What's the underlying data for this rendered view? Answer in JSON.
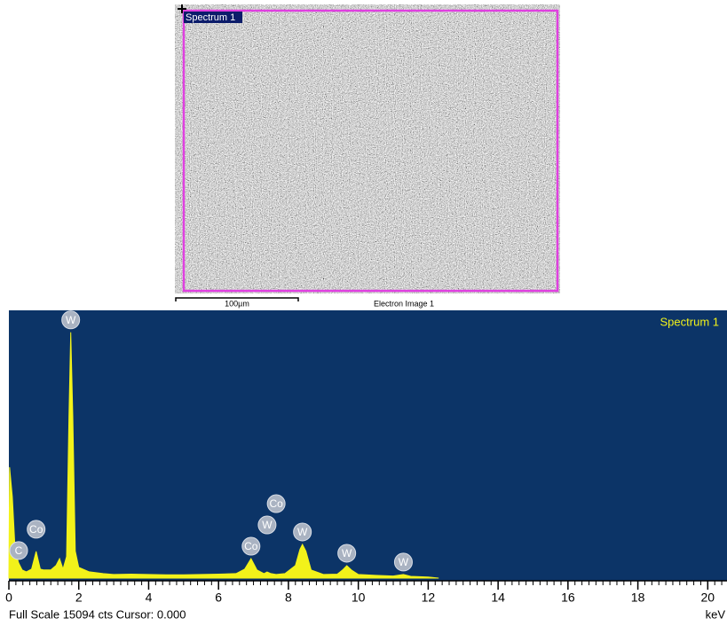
{
  "electron_image": {
    "region_label": "Spectrum 1",
    "scale_bar": "100µm",
    "caption": "Electron Image 1"
  },
  "chart_data": {
    "type": "area",
    "title": "Spectrum 1",
    "x_label": "keV",
    "footer": "Full Scale 15094 cts Cursor: 0.000",
    "color": "#f2f21a",
    "background": "#0c3467",
    "xlim": [
      0,
      20.5
    ],
    "ylim": [
      0,
      15094
    ],
    "xticks": [
      0,
      2,
      4,
      6,
      8,
      10,
      12,
      14,
      16,
      18,
      20
    ],
    "x": [
      0,
      0.02,
      0.1,
      0.18,
      0.28,
      0.38,
      0.5,
      0.65,
      0.78,
      0.9,
      1.0,
      1.2,
      1.35,
      1.45,
      1.55,
      1.65,
      1.72,
      1.77,
      1.83,
      1.9,
      2.0,
      2.3,
      2.7,
      3.0,
      3.5,
      4.0,
      4.5,
      5.0,
      5.5,
      6.0,
      6.5,
      6.75,
      6.93,
      7.1,
      7.3,
      7.39,
      7.5,
      7.65,
      7.9,
      8.2,
      8.33,
      8.4,
      8.5,
      8.65,
      9.0,
      9.4,
      9.55,
      9.67,
      9.8,
      10.0,
      10.5,
      11.0,
      11.29,
      11.5,
      12.0,
      12.3
    ],
    "values": [
      0,
      6150,
      4500,
      1500,
      840,
      450,
      350,
      500,
      1480,
      500,
      450,
      450,
      700,
      1080,
      500,
      1200,
      9000,
      13630,
      9000,
      1500,
      600,
      350,
      250,
      200,
      220,
      200,
      180,
      180,
      200,
      220,
      250,
      500,
      1080,
      450,
      250,
      340,
      250,
      200,
      250,
      700,
      1600,
      1870,
      1500,
      450,
      200,
      220,
      450,
      690,
      450,
      200,
      150,
      120,
      200,
      100,
      60,
      0
    ],
    "annotations": [
      {
        "label": "C",
        "x": 0.28
      },
      {
        "label": "Co",
        "x": 0.78
      },
      {
        "label": "W",
        "x": 1.77
      },
      {
        "label": "Co",
        "x": 6.93
      },
      {
        "label": "W",
        "x": 7.39
      },
      {
        "label": "Co",
        "x": 7.65
      },
      {
        "label": "W",
        "x": 8.4
      },
      {
        "label": "W",
        "x": 9.67
      },
      {
        "label": "W",
        "x": 11.29
      }
    ]
  }
}
